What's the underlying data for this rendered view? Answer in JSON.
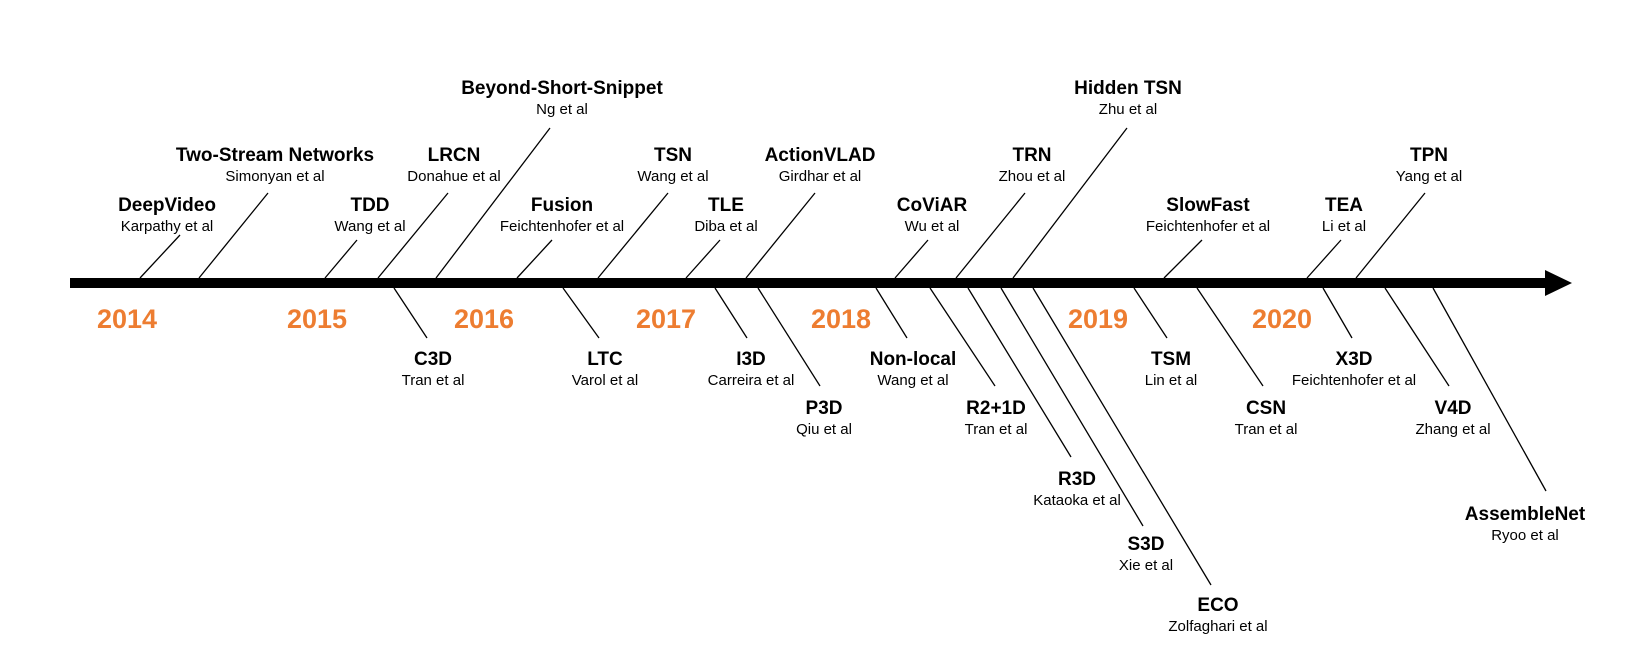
{
  "accent_color": "#ed7d31",
  "years": [
    "2014",
    "2015",
    "2016",
    "2017",
    "2018",
    "2019",
    "2020"
  ],
  "methods": [
    {
      "id": "deepvideo",
      "name": "DeepVideo",
      "author": "Karpathy et al"
    },
    {
      "id": "two-stream-networks",
      "name": "Two-Stream Networks",
      "author": "Simonyan et al"
    },
    {
      "id": "tdd",
      "name": "TDD",
      "author": "Wang et al"
    },
    {
      "id": "lrcn",
      "name": "LRCN",
      "author": "Donahue et al"
    },
    {
      "id": "beyond-short-snippet",
      "name": "Beyond-Short-Snippet",
      "author": "Ng et al"
    },
    {
      "id": "fusion",
      "name": "Fusion",
      "author": "Feichtenhofer et al"
    },
    {
      "id": "tsn",
      "name": "TSN",
      "author": "Wang et al"
    },
    {
      "id": "tle",
      "name": "TLE",
      "author": "Diba et al"
    },
    {
      "id": "actionvlad",
      "name": "ActionVLAD",
      "author": "Girdhar et al"
    },
    {
      "id": "coviar",
      "name": "CoViAR",
      "author": "Wu et al"
    },
    {
      "id": "trn",
      "name": "TRN",
      "author": "Zhou et al"
    },
    {
      "id": "hidden-tsn",
      "name": "Hidden TSN",
      "author": "Zhu et al"
    },
    {
      "id": "slowfast",
      "name": "SlowFast",
      "author": "Feichtenhofer et al"
    },
    {
      "id": "tea",
      "name": "TEA",
      "author": "Li et al"
    },
    {
      "id": "tpn",
      "name": "TPN",
      "author": "Yang et al"
    },
    {
      "id": "c3d",
      "name": "C3D",
      "author": "Tran et al"
    },
    {
      "id": "ltc",
      "name": "LTC",
      "author": "Varol et al"
    },
    {
      "id": "i3d",
      "name": "I3D",
      "author": "Carreira et al"
    },
    {
      "id": "p3d",
      "name": "P3D",
      "author": "Qiu et al"
    },
    {
      "id": "non-local",
      "name": "Non-local",
      "author": "Wang et al"
    },
    {
      "id": "r2plus1d",
      "name": "R2+1D",
      "author": "Tran et al"
    },
    {
      "id": "r3d",
      "name": "R3D",
      "author": "Kataoka et al"
    },
    {
      "id": "s3d",
      "name": "S3D",
      "author": "Xie et al"
    },
    {
      "id": "eco",
      "name": "ECO",
      "author": "Zolfaghari et al"
    },
    {
      "id": "tsm",
      "name": "TSM",
      "author": "Lin et al"
    },
    {
      "id": "csn",
      "name": "CSN",
      "author": "Tran et al"
    },
    {
      "id": "x3d",
      "name": "X3D",
      "author": "Feichtenhofer et al"
    },
    {
      "id": "v4d",
      "name": "V4D",
      "author": "Zhang et al"
    },
    {
      "id": "assemblenet",
      "name": "AssembleNet",
      "author": "Ryoo et al"
    }
  ]
}
